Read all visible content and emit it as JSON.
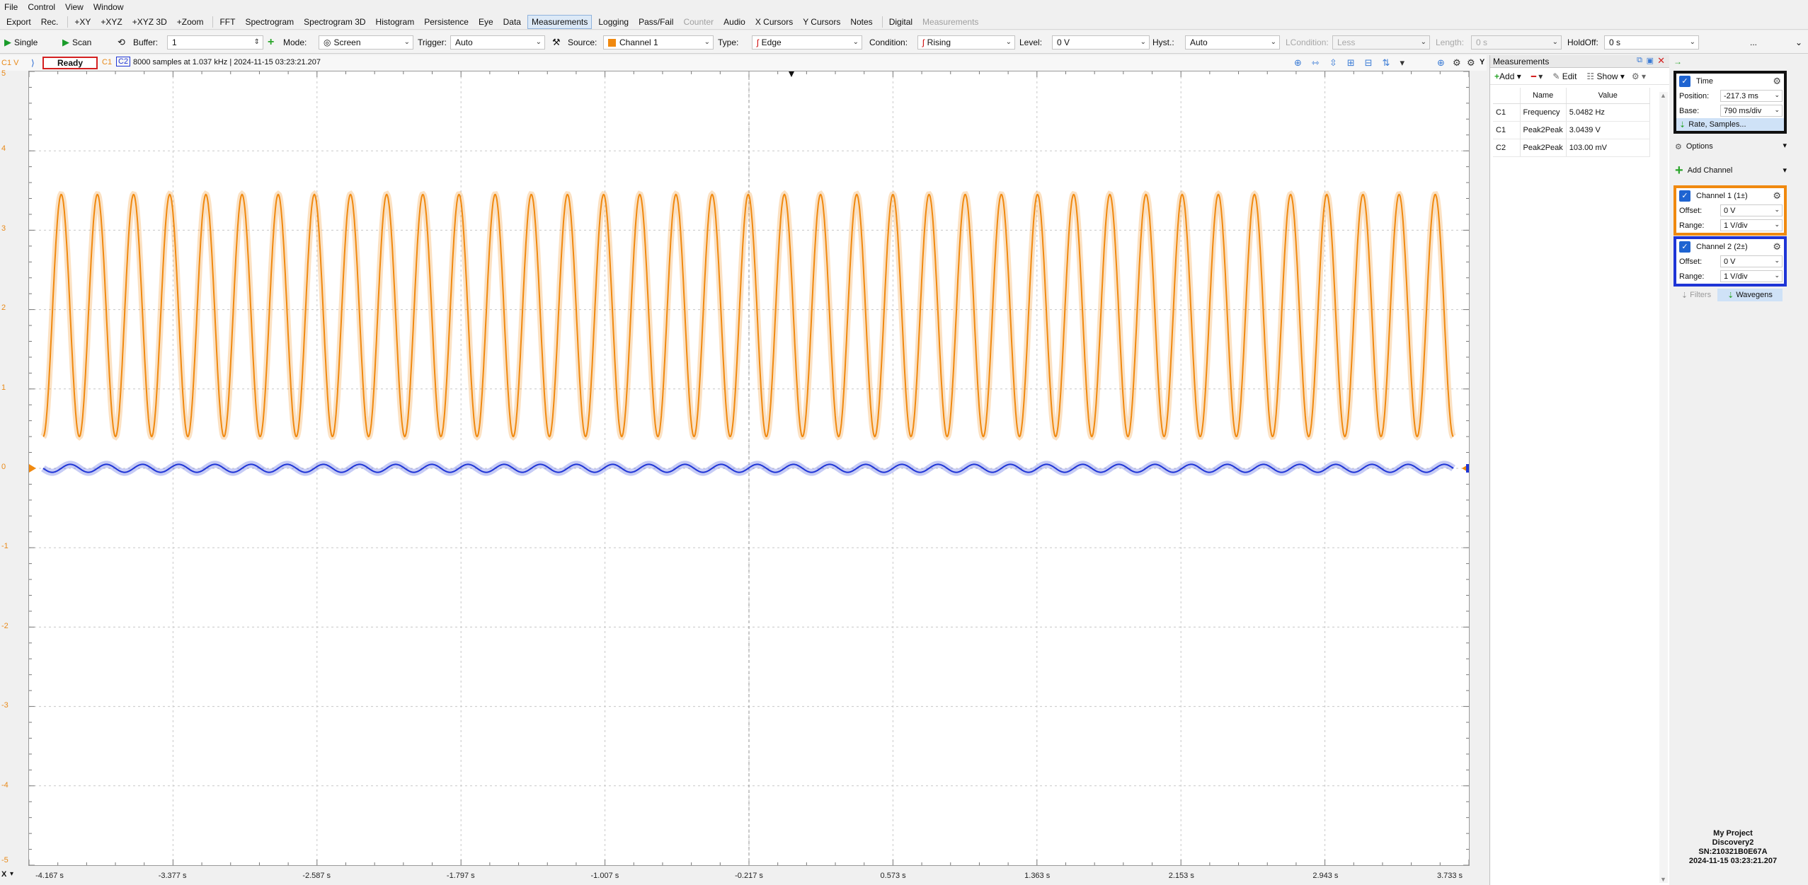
{
  "menu": [
    "File",
    "Control",
    "View",
    "Window"
  ],
  "tabs": [
    {
      "label": "Export",
      "state": "normal"
    },
    {
      "label": "Rec.",
      "state": "normal"
    },
    {
      "label": "+XY",
      "state": "normal"
    },
    {
      "label": "+XYZ",
      "state": "normal"
    },
    {
      "label": "+XYZ 3D",
      "state": "normal"
    },
    {
      "label": "+Zoom",
      "state": "normal"
    },
    {
      "label": "FFT",
      "state": "normal"
    },
    {
      "label": "Spectrogram",
      "state": "normal"
    },
    {
      "label": "Spectrogram 3D",
      "state": "normal"
    },
    {
      "label": "Histogram",
      "state": "normal"
    },
    {
      "label": "Persistence",
      "state": "normal"
    },
    {
      "label": "Eye",
      "state": "normal"
    },
    {
      "label": "Data",
      "state": "normal"
    },
    {
      "label": "Measurements",
      "state": "active"
    },
    {
      "label": "Logging",
      "state": "normal"
    },
    {
      "label": "Pass/Fail",
      "state": "normal"
    },
    {
      "label": "Counter",
      "state": "disabled"
    },
    {
      "label": "Audio",
      "state": "normal"
    },
    {
      "label": "X Cursors",
      "state": "normal"
    },
    {
      "label": "Y Cursors",
      "state": "normal"
    },
    {
      "label": "Notes",
      "state": "normal"
    },
    {
      "label": "Digital",
      "state": "normal"
    },
    {
      "label": "Measurements",
      "state": "disabled"
    }
  ],
  "toolbar": {
    "single": "Single",
    "scan": "Scan",
    "buffer_label": "Buffer:",
    "buffer_value": "1",
    "mode_label": "Mode:",
    "mode_value": "Screen",
    "trigger_label": "Trigger:",
    "trigger_value": "Auto",
    "source_label": "Source:",
    "source_value": "Channel 1",
    "type_label": "Type:",
    "type_value": "Edge",
    "condition_label": "Condition:",
    "condition_value": "Rising",
    "level_label": "Level:",
    "level_value": "0 V",
    "hyst_label": "Hyst.:",
    "hyst_value": "Auto",
    "lcondition_label": "LCondition:",
    "lcondition_value": "Less",
    "length_label": "Length:",
    "length_value": "0 s",
    "holdoff_label": "HoldOff:",
    "holdoff_value": "0 s",
    "more": "..."
  },
  "plot": {
    "corner_label": "C1 V",
    "status": "Ready",
    "c1_tag": "C1",
    "c2_tag": "C2",
    "info": "8000 samples at 1.037 kHz  | 2024-11-15 03:23:21.207",
    "y_ticks": [
      "5",
      "4",
      "3",
      "2",
      "1",
      "0",
      "-1",
      "-2",
      "-3",
      "-4",
      "-5"
    ],
    "x_ticks": [
      "-4.167 s",
      "-3.377 s",
      "-2.587 s",
      "-1.797 s",
      "-1.007 s",
      "-0.217 s",
      "0.573 s",
      "1.363 s",
      "2.153 s",
      "2.943 s",
      "3.733 s"
    ],
    "x_axis_tag": "X",
    "y_axis_tag": "Y"
  },
  "colors": {
    "channel1": "#f0890f",
    "channel2": "#1f35d6",
    "time_box": "#111111",
    "accent": "#1f64d1",
    "status_border": "#d42020"
  },
  "waveforms": {
    "ch1": {
      "cycles": 39,
      "high_v": 3.45,
      "low_v": 0.4
    },
    "ch2": {
      "cycles": 39,
      "amplitude_v": 0.05,
      "offset_v": 0.0
    }
  },
  "measurements": {
    "title": "Measurements",
    "add_label": "Add",
    "edit_label": "Edit",
    "show_label": "Show",
    "columns": [
      "",
      "Name",
      "Value"
    ],
    "rows": [
      {
        "channel": "C1",
        "name": "Frequency",
        "value": "5.0482 Hz"
      },
      {
        "channel": "C1",
        "name": "Peak2Peak",
        "value": "3.0439 V"
      },
      {
        "channel": "C2",
        "name": "Peak2Peak",
        "value": "103.00 mV"
      }
    ]
  },
  "time_panel": {
    "title": "Time",
    "position_label": "Position:",
    "position_value": "-217.3 ms",
    "base_label": "Base:",
    "base_value": "790 ms/div",
    "rate_label": "Rate, Samples..."
  },
  "options_label": "Options",
  "add_channel_label": "Add Channel",
  "channel1": {
    "title": "Channel 1 (1±)",
    "offset_label": "Offset:",
    "offset_value": "0 V",
    "range_label": "Range:",
    "range_value": "1 V/div"
  },
  "channel2": {
    "title": "Channel 2 (2±)",
    "offset_label": "Offset:",
    "offset_value": "0 V",
    "range_label": "Range:",
    "range_value": "1 V/div"
  },
  "filters_label": "Filters",
  "wavegens_label": "Wavegens",
  "device": {
    "project": "My Project",
    "name": "Discovery2",
    "serial": "SN:210321B0E67A",
    "timestamp": "2024-11-15 03:23:21.207"
  }
}
